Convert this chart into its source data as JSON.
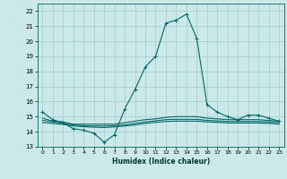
{
  "xlabel": "Humidex (Indice chaleur)",
  "bg_color": "#cce9e9",
  "grid_color": "#aad4d4",
  "line_color": "#006666",
  "xlim": [
    -0.5,
    23.5
  ],
  "ylim": [
    13,
    22.5
  ],
  "yticks": [
    13,
    14,
    15,
    16,
    17,
    18,
    19,
    20,
    21,
    22
  ],
  "xticks": [
    0,
    1,
    2,
    3,
    4,
    5,
    6,
    7,
    8,
    9,
    10,
    11,
    12,
    13,
    14,
    15,
    16,
    17,
    18,
    19,
    20,
    21,
    22,
    23
  ],
  "curve1_x": [
    0,
    1,
    2,
    3,
    4,
    5,
    6,
    7,
    8,
    9,
    10,
    11,
    12,
    13,
    14,
    15,
    16,
    17,
    18,
    19,
    20,
    21,
    22,
    23
  ],
  "curve1_y": [
    15.3,
    14.8,
    14.6,
    14.2,
    14.1,
    13.9,
    13.3,
    13.8,
    15.5,
    16.8,
    18.3,
    19.0,
    21.2,
    21.4,
    21.8,
    20.2,
    15.8,
    15.3,
    15.0,
    14.8,
    15.1,
    15.1,
    14.9,
    14.7
  ],
  "curve2_x": [
    0,
    1,
    2,
    3,
    4,
    5,
    6,
    7,
    8,
    9,
    10,
    11,
    12,
    13,
    14,
    15,
    16,
    17,
    18,
    19,
    20,
    21,
    22,
    23
  ],
  "curve2_y": [
    14.9,
    14.7,
    14.65,
    14.5,
    14.5,
    14.5,
    14.5,
    14.5,
    14.6,
    14.7,
    14.8,
    14.85,
    14.95,
    15.0,
    15.0,
    15.0,
    14.9,
    14.85,
    14.8,
    14.8,
    14.8,
    14.8,
    14.75,
    14.7
  ],
  "curve3_x": [
    0,
    1,
    2,
    3,
    4,
    5,
    6,
    7,
    8,
    9,
    10,
    11,
    12,
    13,
    14,
    15,
    16,
    17,
    18,
    19,
    20,
    21,
    22,
    23
  ],
  "curve3_y": [
    14.75,
    14.65,
    14.55,
    14.45,
    14.4,
    14.38,
    14.38,
    14.4,
    14.45,
    14.55,
    14.65,
    14.72,
    14.8,
    14.82,
    14.82,
    14.82,
    14.75,
    14.72,
    14.68,
    14.68,
    14.68,
    14.68,
    14.65,
    14.6
  ],
  "curve4_x": [
    0,
    1,
    2,
    3,
    4,
    5,
    6,
    7,
    8,
    9,
    10,
    11,
    12,
    13,
    14,
    15,
    16,
    17,
    18,
    19,
    20,
    21,
    22,
    23
  ],
  "curve4_y": [
    14.6,
    14.55,
    14.48,
    14.38,
    14.33,
    14.3,
    14.28,
    14.32,
    14.38,
    14.45,
    14.55,
    14.62,
    14.68,
    14.7,
    14.7,
    14.7,
    14.65,
    14.62,
    14.58,
    14.58,
    14.58,
    14.58,
    14.55,
    14.5
  ]
}
